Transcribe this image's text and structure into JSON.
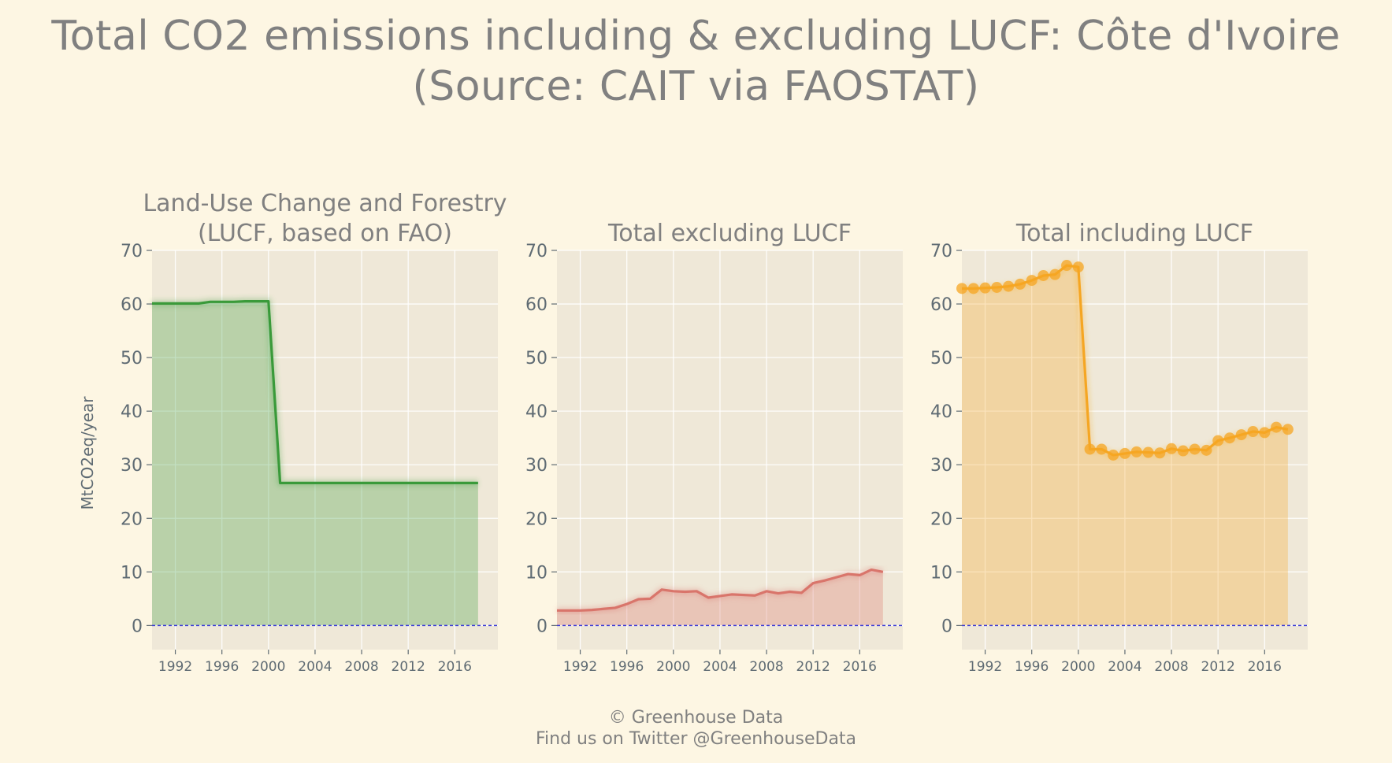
{
  "page": {
    "title_line1": "Total CO2 emissions including & excluding LUCF: Côte d'Ivoire",
    "title_line2": "(Source: CAIT via FAOSTAT)",
    "footer_line1": "© Greenhouse Data",
    "footer_line2": "Find us on Twitter @GreenhouseData"
  },
  "colors": {
    "background": "#fdf6e3",
    "plot_background": "#efe8d8",
    "grid": "#ffffff",
    "text": "#7a7a7a",
    "tick_text": "#5f6b73",
    "zero_line": "#3a3ad6",
    "lucf": "#3a9a3a",
    "excl": "#d9756b",
    "incl": "#f5a623"
  },
  "chart_data": [
    {
      "type": "area",
      "title": "Land-Use Change and Forestry (LUCF, based on FAO)",
      "title_lines": [
        "Land-Use Change and Forestry",
        "(LUCF, based on FAO)"
      ],
      "ylabel": "MtCO2eq/year",
      "xlabel": "",
      "xlim": [
        1990,
        2019.7
      ],
      "ylim": [
        -4.5,
        70
      ],
      "xticks": [
        1992,
        1996,
        2000,
        2004,
        2008,
        2012,
        2016
      ],
      "yticks": [
        0,
        10,
        20,
        30,
        40,
        50,
        60,
        70
      ],
      "grid": true,
      "markers": false,
      "color_key": "lucf",
      "x": [
        1990,
        1991,
        1992,
        1993,
        1994,
        1995,
        1996,
        1997,
        1998,
        1999,
        2000,
        2001,
        2002,
        2003,
        2004,
        2005,
        2006,
        2007,
        2008,
        2009,
        2010,
        2011,
        2012,
        2013,
        2014,
        2015,
        2016,
        2017,
        2018
      ],
      "values": [
        60.1,
        60.1,
        60.1,
        60.1,
        60.1,
        60.4,
        60.4,
        60.4,
        60.5,
        60.5,
        60.5,
        26.6,
        26.6,
        26.6,
        26.6,
        26.6,
        26.6,
        26.6,
        26.6,
        26.6,
        26.6,
        26.6,
        26.6,
        26.6,
        26.6,
        26.6,
        26.6,
        26.6,
        26.6
      ]
    },
    {
      "type": "area",
      "title": "Total excluding LUCF",
      "title_lines": [
        "Total excluding LUCF"
      ],
      "ylabel": "",
      "xlabel": "",
      "xlim": [
        1990,
        2019.7
      ],
      "ylim": [
        -4.5,
        70
      ],
      "xticks": [
        1992,
        1996,
        2000,
        2004,
        2008,
        2012,
        2016
      ],
      "yticks": [
        0,
        10,
        20,
        30,
        40,
        50,
        60,
        70
      ],
      "grid": true,
      "markers": false,
      "color_key": "excl",
      "x": [
        1990,
        1991,
        1992,
        1993,
        1994,
        1995,
        1996,
        1997,
        1998,
        1999,
        2000,
        2001,
        2002,
        2003,
        2004,
        2005,
        2006,
        2007,
        2008,
        2009,
        2010,
        2011,
        2012,
        2013,
        2014,
        2015,
        2016,
        2017,
        2018
      ],
      "values": [
        2.8,
        2.8,
        2.8,
        2.9,
        3.1,
        3.3,
        4.0,
        4.9,
        5.0,
        6.7,
        6.4,
        6.3,
        6.4,
        5.2,
        5.5,
        5.8,
        5.7,
        5.6,
        6.4,
        6.0,
        6.3,
        6.1,
        7.9,
        8.4,
        9.0,
        9.6,
        9.4,
        10.4,
        10.0
      ]
    },
    {
      "type": "area",
      "title": "Total including LUCF",
      "title_lines": [
        "Total including LUCF"
      ],
      "ylabel": "",
      "xlabel": "",
      "xlim": [
        1990,
        2019.7
      ],
      "ylim": [
        -4.5,
        70
      ],
      "xticks": [
        1992,
        1996,
        2000,
        2004,
        2008,
        2012,
        2016
      ],
      "yticks": [
        0,
        10,
        20,
        30,
        40,
        50,
        60,
        70
      ],
      "grid": true,
      "markers": true,
      "color_key": "incl",
      "x": [
        1990,
        1991,
        1992,
        1993,
        1994,
        1995,
        1996,
        1997,
        1998,
        1999,
        2000,
        2001,
        2002,
        2003,
        2004,
        2005,
        2006,
        2007,
        2008,
        2009,
        2010,
        2011,
        2012,
        2013,
        2014,
        2015,
        2016,
        2017,
        2018
      ],
      "values": [
        62.9,
        62.9,
        63.0,
        63.1,
        63.3,
        63.7,
        64.4,
        65.3,
        65.5,
        67.2,
        66.9,
        32.9,
        32.9,
        31.8,
        32.1,
        32.4,
        32.3,
        32.2,
        33.0,
        32.6,
        32.9,
        32.7,
        34.5,
        35.0,
        35.6,
        36.2,
        36.0,
        37.0,
        36.6
      ]
    }
  ]
}
